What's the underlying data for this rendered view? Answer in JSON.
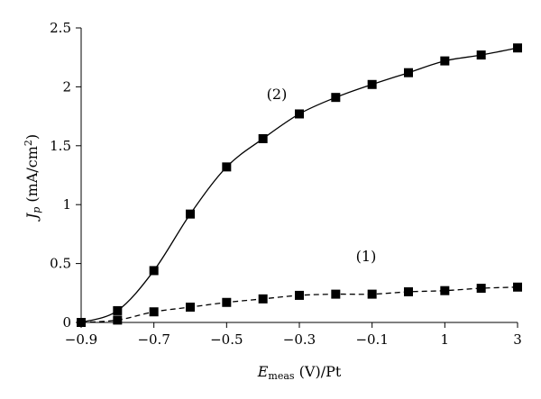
{
  "chart_data": {
    "type": "line",
    "x_ticks": [
      "−0.9",
      "−0.7",
      "−0.5",
      "−0.3",
      "−0.1",
      "1",
      "3"
    ],
    "y_ticks": [
      "0",
      "0.5",
      "1",
      "1.5",
      "2",
      "2.5"
    ],
    "ylim": [
      0,
      2.5
    ],
    "grid": false,
    "legend": "none",
    "xlabel": {
      "main": "E",
      "sub": "meas",
      "rest": " (V)/Pt"
    },
    "ylabel": {
      "main": "J",
      "sub": "p",
      "rest": " (mA/cm",
      "sup": "2",
      "close": ")"
    },
    "series": [
      {
        "label": "(2)",
        "style": "solid",
        "points": [
          [
            -0.9,
            0.0
          ],
          [
            -0.8,
            0.1
          ],
          [
            -0.7,
            0.44
          ],
          [
            -0.6,
            0.92
          ],
          [
            -0.5,
            1.32
          ],
          [
            -0.4,
            1.56
          ],
          [
            -0.3,
            1.77
          ],
          [
            -0.2,
            1.91
          ],
          [
            -0.1,
            2.02
          ],
          [
            0.0,
            2.12
          ],
          [
            1.0,
            2.22
          ],
          [
            2.0,
            2.27
          ],
          [
            3.0,
            2.33
          ]
        ]
      },
      {
        "label": "(1)",
        "style": "dashed",
        "points": [
          [
            -0.9,
            0.0
          ],
          [
            -0.8,
            0.02
          ],
          [
            -0.7,
            0.09
          ],
          [
            -0.6,
            0.13
          ],
          [
            -0.5,
            0.17
          ],
          [
            -0.4,
            0.2
          ],
          [
            -0.3,
            0.23
          ],
          [
            -0.2,
            0.24
          ],
          [
            -0.1,
            0.24
          ],
          [
            0.0,
            0.26
          ],
          [
            1.0,
            0.27
          ],
          [
            2.0,
            0.29
          ],
          [
            3.0,
            0.3
          ]
        ]
      }
    ],
    "colors": {
      "line": "#000000",
      "marker": "#000000"
    }
  }
}
